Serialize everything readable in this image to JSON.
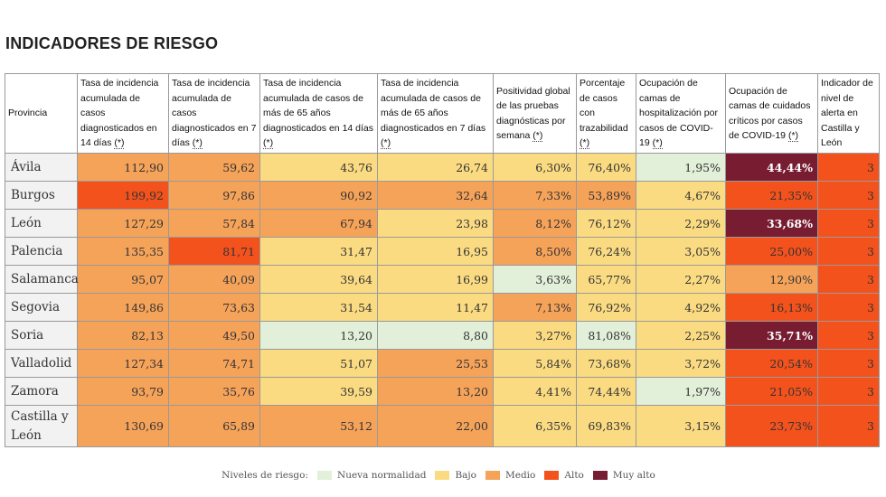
{
  "title": "INDICADORES DE RIESGO",
  "columns": {
    "provincia": "Provincia",
    "c1": {
      "text": "Tasa de incidencia acumulada de casos diagnosticados en 14 días ",
      "ref": "(*)"
    },
    "c2": {
      "text": "Tasa de incidencia acumulada de casos diagnosticados en 7 días ",
      "ref": "(*)"
    },
    "c3": {
      "text": "Tasa de incidencia acumulada de casos de más de 65 años diagnosticados en 14 días ",
      "ref": "(*)"
    },
    "c4": {
      "text": "Tasa de incidencia acumulada de casos de más de 65 años diagnosticados en 7 días ",
      "ref": "(*)"
    },
    "c5": {
      "text": "Positividad global de las pruebas diagnósticas por semana ",
      "ref": "(*)"
    },
    "c6": {
      "text": "Porcentaje de casos con trazabilidad ",
      "ref": "(*)"
    },
    "c7": {
      "text": "Ocupación de camas de hospitalización por casos de COVID-19 ",
      "ref": "(*)"
    },
    "c8": {
      "text": "Ocupación de camas de cuidados críticos por casos de COVID-19 ",
      "ref": "(*)"
    },
    "c9": "Indicador de nivel de alerta en Castilla y León"
  },
  "rows": [
    {
      "provincia": "Ávila",
      "v": [
        "112,90",
        "59,62",
        "43,76",
        "26,74",
        "6,30%",
        "76,40%",
        "1,95%",
        "44,44%",
        "3"
      ],
      "lvl": [
        "md",
        "md",
        "bj",
        "bj",
        "bj",
        "bj",
        "nn",
        "ma",
        "al"
      ]
    },
    {
      "provincia": "Burgos",
      "v": [
        "199,92",
        "97,86",
        "90,92",
        "32,64",
        "7,33%",
        "53,89%",
        "4,67%",
        "21,35%",
        "3"
      ],
      "lvl": [
        "al",
        "md",
        "md",
        "md",
        "md",
        "md",
        "bj",
        "al",
        "al"
      ]
    },
    {
      "provincia": "León",
      "v": [
        "127,29",
        "57,84",
        "67,94",
        "23,98",
        "8,12%",
        "76,12%",
        "2,29%",
        "33,68%",
        "3"
      ],
      "lvl": [
        "md",
        "md",
        "md",
        "bj",
        "md",
        "bj",
        "bj",
        "ma",
        "al"
      ]
    },
    {
      "provincia": "Palencia",
      "v": [
        "135,35",
        "81,71",
        "31,47",
        "16,95",
        "8,50%",
        "76,24%",
        "3,05%",
        "25,00%",
        "3"
      ],
      "lvl": [
        "md",
        "al",
        "bj",
        "bj",
        "md",
        "bj",
        "bj",
        "al",
        "al"
      ]
    },
    {
      "provincia": "Salamanca",
      "v": [
        "95,07",
        "40,09",
        "39,64",
        "16,99",
        "3,63%",
        "65,77%",
        "2,27%",
        "12,90%",
        "3"
      ],
      "lvl": [
        "md",
        "md",
        "bj",
        "bj",
        "nn",
        "bj",
        "bj",
        "md",
        "al"
      ]
    },
    {
      "provincia": "Segovia",
      "v": [
        "149,86",
        "73,63",
        "31,54",
        "11,47",
        "7,13%",
        "76,92%",
        "4,92%",
        "16,13%",
        "3"
      ],
      "lvl": [
        "md",
        "md",
        "bj",
        "bj",
        "md",
        "bj",
        "bj",
        "al",
        "al"
      ]
    },
    {
      "provincia": "Soria",
      "v": [
        "82,13",
        "49,50",
        "13,20",
        "8,80",
        "3,27%",
        "81,08%",
        "2,25%",
        "35,71%",
        "3"
      ],
      "lvl": [
        "md",
        "md",
        "nn",
        "nn",
        "bj",
        "nn",
        "bj",
        "ma",
        "al"
      ]
    },
    {
      "provincia": "Valladolid",
      "v": [
        "127,34",
        "74,71",
        "51,07",
        "25,53",
        "5,84%",
        "73,68%",
        "3,72%",
        "20,54%",
        "3"
      ],
      "lvl": [
        "md",
        "md",
        "bj",
        "md",
        "bj",
        "bj",
        "bj",
        "al",
        "al"
      ]
    },
    {
      "provincia": "Zamora",
      "v": [
        "93,79",
        "35,76",
        "39,59",
        "13,20",
        "4,41%",
        "74,44%",
        "1,97%",
        "21,05%",
        "3"
      ],
      "lvl": [
        "md",
        "md",
        "bj",
        "md",
        "bj",
        "bj",
        "nn",
        "al",
        "al"
      ]
    },
    {
      "provincia": "Castilla y León",
      "v": [
        "130,69",
        "65,89",
        "53,12",
        "22,00",
        "6,35%",
        "69,83%",
        "3,15%",
        "23,73%",
        "3"
      ],
      "lvl": [
        "md",
        "md",
        "md",
        "md",
        "bj",
        "bj",
        "bj",
        "al",
        "al"
      ]
    }
  ],
  "legend": {
    "label": "Niveles de riesgo:",
    "items": [
      {
        "label": "Nueva normalidad",
        "color": "#e2efd9"
      },
      {
        "label": "Bajo",
        "color": "#fbdb82"
      },
      {
        "label": "Medio",
        "color": "#f6a35a"
      },
      {
        "label": "Alto",
        "color": "#f4521d"
      },
      {
        "label": "Muy alto",
        "color": "#781d31"
      }
    ]
  }
}
